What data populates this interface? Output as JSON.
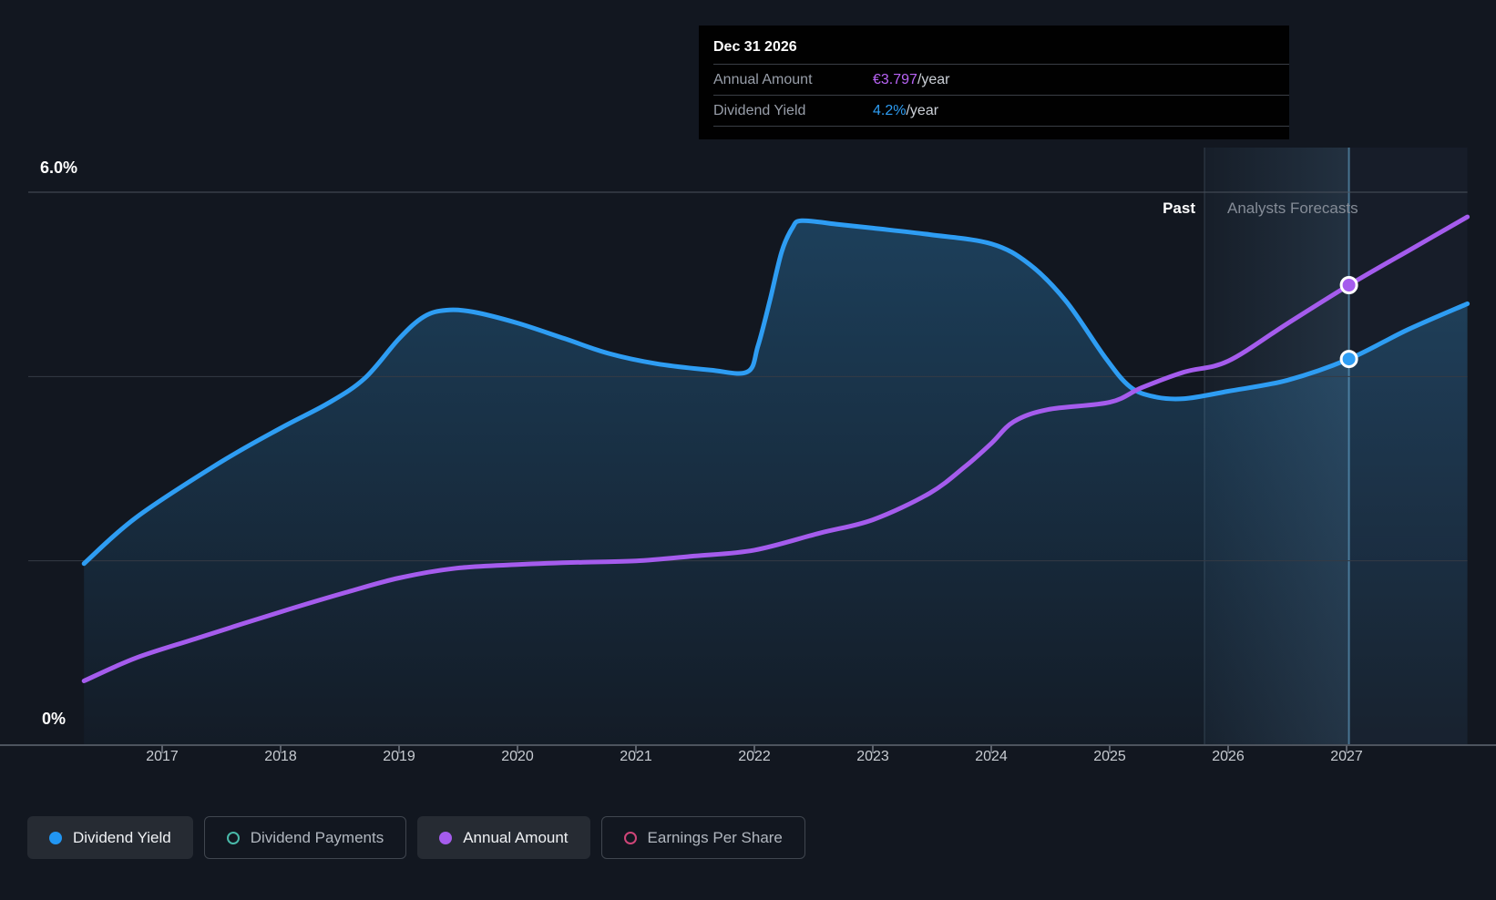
{
  "tooltip": {
    "title": "Dec 31 2026",
    "rows": [
      {
        "label": "Annual Amount",
        "value": "€3.797",
        "suffix": "/year",
        "value_color": "#b964f6"
      },
      {
        "label": "Dividend Yield",
        "value": "4.2%",
        "suffix": "/year",
        "value_color": "#2e9df3"
      }
    ]
  },
  "annotations": {
    "past": "Past",
    "forecast": "Analysts Forecasts"
  },
  "y_axis": {
    "top_label": "6.0%",
    "bottom_label": "0%"
  },
  "legend": {
    "items": [
      {
        "label": "Dividend Yield",
        "color": "#2196f3",
        "style": "filled",
        "active": true
      },
      {
        "label": "Dividend Payments",
        "color": "#49b9a9",
        "style": "ring",
        "active": false
      },
      {
        "label": "Annual Amount",
        "color": "#a55ced",
        "style": "filled",
        "active": true
      },
      {
        "label": "Earnings Per Share",
        "color": "#cf4578",
        "style": "ring",
        "active": false
      }
    ]
  },
  "chart_data": {
    "type": "area",
    "x_ticks": [
      2017,
      2018,
      2019,
      2020,
      2021,
      2022,
      2023,
      2024,
      2025,
      2026,
      2027
    ],
    "y_gridlines_pct": [
      6,
      4,
      2,
      0
    ],
    "ylim_pct": [
      0,
      6
    ],
    "past_forecast_boundary_year": 2025.8,
    "highlight_year": 2027.02,
    "highlight_date": "Dec 31 2026",
    "grid_color": "#353b45",
    "grid_color_top": "#4a515c",
    "axis_color": "#4d545e",
    "series": [
      {
        "name": "Dividend Yield",
        "unit": "%",
        "color": "#2e9df3",
        "area_fill": true,
        "points": [
          [
            2016.34,
            1.97
          ],
          [
            2016.78,
            2.47
          ],
          [
            2017.48,
            3.06
          ],
          [
            2018.0,
            3.44
          ],
          [
            2018.4,
            3.71
          ],
          [
            2018.71,
            3.98
          ],
          [
            2019.0,
            4.41
          ],
          [
            2019.21,
            4.65
          ],
          [
            2019.4,
            4.72
          ],
          [
            2019.63,
            4.7
          ],
          [
            2020.0,
            4.58
          ],
          [
            2020.4,
            4.41
          ],
          [
            2020.77,
            4.25
          ],
          [
            2021.17,
            4.14
          ],
          [
            2021.63,
            4.07
          ],
          [
            2021.94,
            4.05
          ],
          [
            2022.03,
            4.33
          ],
          [
            2022.13,
            4.82
          ],
          [
            2022.23,
            5.35
          ],
          [
            2022.32,
            5.61
          ],
          [
            2022.4,
            5.69
          ],
          [
            2022.71,
            5.65
          ],
          [
            2023.0,
            5.61
          ],
          [
            2023.48,
            5.54
          ],
          [
            2024.0,
            5.44
          ],
          [
            2024.32,
            5.22
          ],
          [
            2024.63,
            4.82
          ],
          [
            2024.96,
            4.21
          ],
          [
            2025.17,
            3.89
          ],
          [
            2025.38,
            3.78
          ],
          [
            2025.63,
            3.76
          ],
          [
            2026.0,
            3.84
          ],
          [
            2026.5,
            3.96
          ],
          [
            2027.02,
            4.19
          ],
          [
            2027.52,
            4.51
          ],
          [
            2028.02,
            4.79
          ]
        ]
      },
      {
        "name": "Annual Amount",
        "unit": "EUR/year",
        "color": "#a55ced",
        "area_fill": false,
        "points": [
          [
            2016.34,
            0.53
          ],
          [
            2016.78,
            0.72
          ],
          [
            2017.32,
            0.89
          ],
          [
            2018.0,
            1.1
          ],
          [
            2018.55,
            1.26
          ],
          [
            2019.0,
            1.38
          ],
          [
            2019.48,
            1.46
          ],
          [
            2020.0,
            1.49
          ],
          [
            2020.55,
            1.51
          ],
          [
            2021.0,
            1.52
          ],
          [
            2021.48,
            1.56
          ],
          [
            2022.0,
            1.61
          ],
          [
            2022.55,
            1.75
          ],
          [
            2023.0,
            1.86
          ],
          [
            2023.48,
            2.08
          ],
          [
            2023.78,
            2.3
          ],
          [
            2024.0,
            2.49
          ],
          [
            2024.19,
            2.67
          ],
          [
            2024.48,
            2.77
          ],
          [
            2025.0,
            2.83
          ],
          [
            2025.27,
            2.95
          ],
          [
            2025.63,
            3.08
          ],
          [
            2026.0,
            3.17
          ],
          [
            2026.5,
            3.48
          ],
          [
            2027.02,
            3.797
          ],
          [
            2027.52,
            4.08
          ],
          [
            2028.02,
            4.36
          ]
        ]
      }
    ],
    "markers": [
      {
        "series": "Annual Amount",
        "year": 2027.02,
        "value": 3.797,
        "color": "#a55ced"
      },
      {
        "series": "Dividend Yield",
        "year": 2027.02,
        "value": 4.19,
        "color": "#2e9df3"
      }
    ]
  }
}
